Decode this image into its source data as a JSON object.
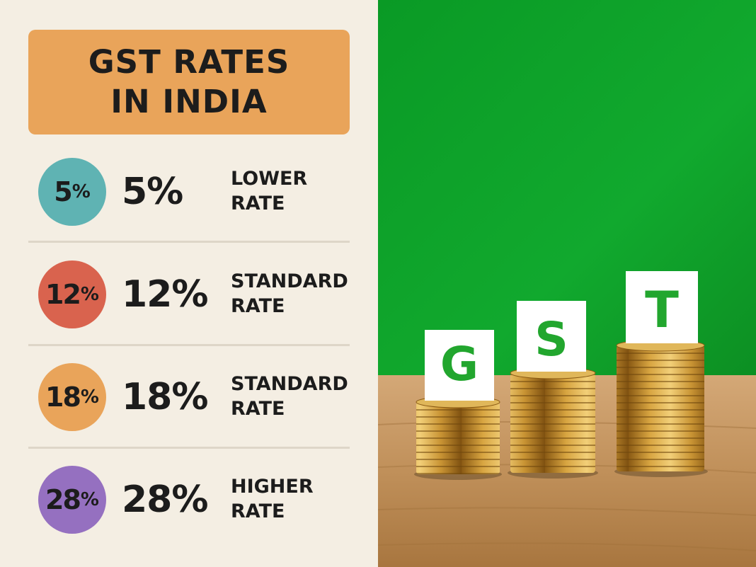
{
  "title": {
    "line1": "GST RATES",
    "line2": "IN INDIA"
  },
  "rates": [
    {
      "circle_num": "5",
      "circle_pct": "%",
      "value": "5%",
      "label_line1": "LOWER",
      "label_line2": "RATE",
      "color": "#5fb3b3"
    },
    {
      "circle_num": "12",
      "circle_pct": "%",
      "value": "12%",
      "label_line1": "STANDARD",
      "label_line2": "RATE",
      "color": "#d9634e"
    },
    {
      "circle_num": "18",
      "circle_pct": "%",
      "value": "18%",
      "label_line1": "STANDARD",
      "label_line2": "RATE",
      "color": "#e9a45a"
    },
    {
      "circle_num": "28",
      "circle_pct": "%",
      "value": "28%",
      "label_line1": "HIGHER",
      "label_line2": "RATE",
      "color": "#9570c0"
    }
  ],
  "photo": {
    "letters": [
      "G",
      "S",
      "T"
    ],
    "background_color": "#0ea12a",
    "table_color": "#c49560",
    "letter_color": "#22a62e"
  }
}
